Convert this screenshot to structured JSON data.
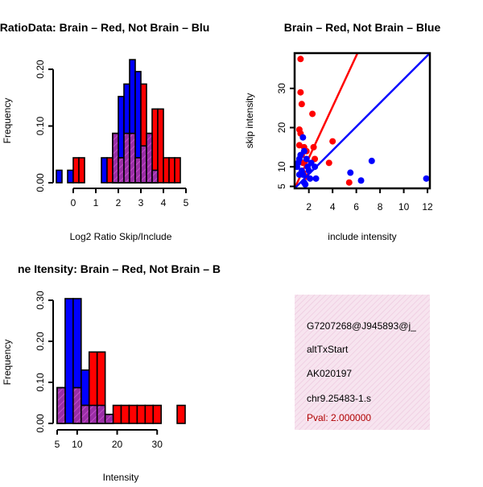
{
  "colors": {
    "red": "#ff0000",
    "blue": "#0000ff",
    "overlap": "#9a2ea6",
    "info_bg": "#f5dcea",
    "info_hatch": "#e8b8d4",
    "pval": "#b00000"
  },
  "chart_data": [
    {
      "type": "histogram",
      "title": "RatioData: Brain - Red, Not Brain - Blue",
      "title_visible": "RatioData: Brain – Red, Not Brain – Blu",
      "xlabel": "Log2 Ratio Skip/Include",
      "ylabel": "Frequency",
      "xlim": [
        -0.75,
        5
      ],
      "ylim": [
        0,
        0.22
      ],
      "xticks": [
        "0",
        "1",
        "2",
        "3",
        "4",
        "5"
      ],
      "yticks": [
        "0.00",
        "0.10",
        "0.20"
      ],
      "bin_width": 0.25,
      "series": [
        {
          "name": "Not Brain",
          "color": "blue",
          "bins": [
            {
              "x0": -0.75,
              "v": 0.022
            },
            {
              "x0": -0.25,
              "v": 0.022
            },
            {
              "x0": 1.25,
              "v": 0.044
            },
            {
              "x0": 1.75,
              "v": 0.087
            },
            {
              "x0": 2.0,
              "v": 0.152
            },
            {
              "x0": 2.25,
              "v": 0.174
            },
            {
              "x0": 2.5,
              "v": 0.217
            },
            {
              "x0": 2.75,
              "v": 0.196
            },
            {
              "x0": 3.0,
              "v": 0.065
            },
            {
              "x0": 3.25,
              "v": 0.087
            },
            {
              "x0": 3.5,
              "v": 0.022
            }
          ]
        },
        {
          "name": "Brain",
          "color": "red",
          "bins": [
            {
              "x0": 0.0,
              "v": 0.044
            },
            {
              "x0": 0.25,
              "v": 0.044
            },
            {
              "x0": 1.5,
              "v": 0.044
            },
            {
              "x0": 1.75,
              "v": 0.087
            },
            {
              "x0": 2.0,
              "v": 0.044
            },
            {
              "x0": 2.25,
              "v": 0.087
            },
            {
              "x0": 2.5,
              "v": 0.087
            },
            {
              "x0": 2.75,
              "v": 0.044
            },
            {
              "x0": 3.0,
              "v": 0.174
            },
            {
              "x0": 3.25,
              "v": 0.087
            },
            {
              "x0": 3.5,
              "v": 0.13
            },
            {
              "x0": 3.75,
              "v": 0.13
            },
            {
              "x0": 4.0,
              "v": 0.044
            },
            {
              "x0": 4.25,
              "v": 0.044
            },
            {
              "x0": 4.5,
              "v": 0.044
            }
          ]
        }
      ]
    },
    {
      "type": "scatter",
      "title": "Brain - Red, Not Brain - Blue",
      "title_visible": "Brain – Red, Not Brain – Blue",
      "xlabel": "include intensity",
      "ylabel": "skip intensity",
      "xlim": [
        0.8,
        12.2
      ],
      "ylim": [
        4.5,
        39
      ],
      "xticks": [
        "2",
        "4",
        "6",
        "8",
        "10",
        "12"
      ],
      "yticks": [
        "5",
        "10",
        "20",
        "30"
      ],
      "series": [
        {
          "name": "Brain",
          "color": "red",
          "points": [
            [
              1.3,
              37.5
            ],
            [
              1.3,
              29
            ],
            [
              1.4,
              26
            ],
            [
              1.2,
              19.5
            ],
            [
              1.3,
              18.5
            ],
            [
              1.2,
              15.5
            ],
            [
              1.6,
              15
            ],
            [
              1.4,
              13
            ],
            [
              1.8,
              14
            ],
            [
              2.3,
              23.5
            ],
            [
              2.4,
              15
            ],
            [
              2.5,
              12
            ],
            [
              1.5,
              11
            ],
            [
              3.7,
              11
            ],
            [
              4.0,
              16.5
            ],
            [
              5.4,
              6
            ],
            [
              1.8,
              7.5
            ],
            [
              1.5,
              8.5
            ]
          ],
          "fit": {
            "x1": 0.8,
            "y1": 4.5,
            "x2": 6.1,
            "y2": 39
          }
        },
        {
          "name": "Not Brain",
          "color": "blue",
          "points": [
            [
              1.0,
              10
            ],
            [
              1.1,
              11
            ],
            [
              1.2,
              12
            ],
            [
              1.3,
              13
            ],
            [
              1.4,
              9
            ],
            [
              1.5,
              8
            ],
            [
              1.6,
              14
            ],
            [
              1.5,
              17.5
            ],
            [
              1.8,
              12
            ],
            [
              1.9,
              10
            ],
            [
              2.0,
              9
            ],
            [
              2.1,
              7
            ],
            [
              1.6,
              6
            ],
            [
              1.7,
              5.5
            ],
            [
              2.2,
              11
            ],
            [
              2.5,
              10
            ],
            [
              2.6,
              7
            ],
            [
              1.2,
              8
            ],
            [
              5.5,
              8.5
            ],
            [
              6.4,
              6.5
            ],
            [
              7.3,
              11.5
            ],
            [
              11.9,
              7
            ]
          ],
          "fit": {
            "x1": 0.8,
            "y1": 4.5,
            "x2": 12.2,
            "y2": 39
          }
        }
      ]
    },
    {
      "type": "histogram",
      "title": "Mean Itensity: Brain - Red, Not Brain - Blue",
      "title_visible": "ne Itensity: Brain – Red, Not Brain – B",
      "xlabel": "Intensity",
      "ylabel": "Frequency",
      "xlim": [
        5,
        37
      ],
      "ylim": [
        0,
        0.304
      ],
      "xticks": [
        "5",
        "10",
        "20",
        "30"
      ],
      "yticks": [
        "0.00",
        "0.10",
        "0.20",
        "0.30"
      ],
      "bin_width": 2,
      "series": [
        {
          "name": "Not Brain",
          "color": "blue",
          "bins": [
            {
              "x0": 5,
              "v": 0.087
            },
            {
              "x0": 7,
              "v": 0.304
            },
            {
              "x0": 9,
              "v": 0.304
            },
            {
              "x0": 11,
              "v": 0.13
            },
            {
              "x0": 13,
              "v": 0.044
            },
            {
              "x0": 15,
              "v": 0.044
            },
            {
              "x0": 17,
              "v": 0.022
            }
          ]
        },
        {
          "name": "Brain",
          "color": "red",
          "bins": [
            {
              "x0": 5,
              "v": 0.087
            },
            {
              "x0": 9,
              "v": 0.087
            },
            {
              "x0": 11,
              "v": 0.044
            },
            {
              "x0": 13,
              "v": 0.174
            },
            {
              "x0": 15,
              "v": 0.174
            },
            {
              "x0": 17,
              "v": 0.022
            },
            {
              "x0": 19,
              "v": 0.044
            },
            {
              "x0": 21,
              "v": 0.044
            },
            {
              "x0": 23,
              "v": 0.044
            },
            {
              "x0": 25,
              "v": 0.044
            },
            {
              "x0": 27,
              "v": 0.044
            },
            {
              "x0": 29,
              "v": 0.044
            },
            {
              "x0": 35,
              "v": 0.044
            }
          ]
        }
      ]
    }
  ],
  "info": {
    "id": "G7207268@J945893@j_",
    "type": "altTxStart",
    "accession": "AK020197",
    "location": "chr9.25483-1.s",
    "pval": "Pval: 2.000000"
  }
}
